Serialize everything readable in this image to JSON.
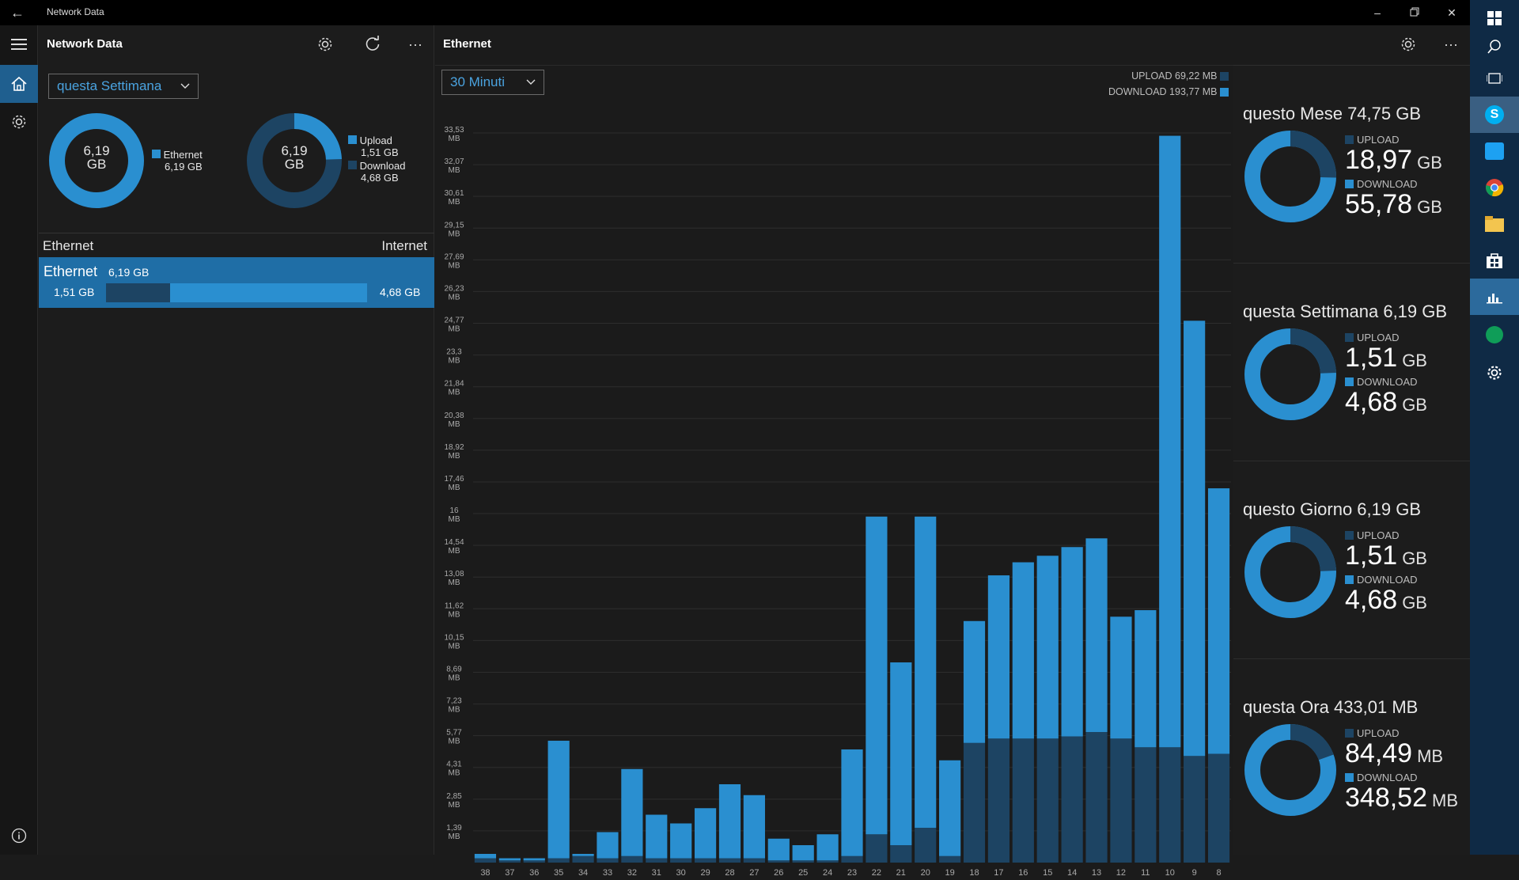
{
  "window": {
    "title": "Network Data"
  },
  "left_pane": {
    "title": "Network Data",
    "period_select": "questa Settimana",
    "donut1": {
      "center_line1": "6,19",
      "center_line2": "GB",
      "legend_label": "Ethernet",
      "legend_value": "6,19 GB"
    },
    "donut2": {
      "center_line1": "6,19",
      "center_line2": "GB",
      "upload_label": "Upload",
      "upload_value": "1,51 GB",
      "download_label": "Download",
      "download_value": "4,68 GB",
      "upload_fraction": 0.244
    },
    "list_header_left": "Ethernet",
    "list_header_right": "Internet",
    "adapter": {
      "name": "Ethernet",
      "total": "6,19 GB",
      "upload": "1,51 GB",
      "download": "4,68 GB",
      "upload_fraction": 0.244
    }
  },
  "right_pane": {
    "title": "Ethernet",
    "interval_select": "30 Minuti",
    "legend_upload": "UPLOAD 69,22 MB",
    "legend_download": "DOWNLOAD 193,77 MB"
  },
  "colors": {
    "download": "#2a8fd0",
    "upload": "#1d4463",
    "accent": "#2a8fd0"
  },
  "chart_data": {
    "type": "bar",
    "stacked": true,
    "y_ticks": [
      "33,53 MB",
      "32,07 MB",
      "30,61 MB",
      "29,15 MB",
      "27,69 MB",
      "26,23 MB",
      "24,77 MB",
      "23,3 MB",
      "21,84 MB",
      "20,38 MB",
      "18,92 MB",
      "17,46 MB",
      "16 MB",
      "14,54 MB",
      "13,08 MB",
      "11,62 MB",
      "10,15 MB",
      "8,69 MB",
      "7,23 MB",
      "5,77 MB",
      "4,31 MB",
      "2,85 MB",
      "1,39 MB"
    ],
    "ylim": [
      0,
      33.53
    ],
    "categories": [
      "38",
      "37",
      "36",
      "35",
      "34",
      "33",
      "32",
      "31",
      "30",
      "29",
      "28",
      "27",
      "26",
      "25",
      "24",
      "23",
      "22",
      "21",
      "20",
      "19",
      "18",
      "17",
      "16",
      "15",
      "14",
      "13",
      "12",
      "11",
      "10",
      "9",
      "8"
    ],
    "series": [
      {
        "name": "UPLOAD",
        "values": [
          0.2,
          0.1,
          0.1,
          0.2,
          0.3,
          0.2,
          0.3,
          0.2,
          0.2,
          0.2,
          0.2,
          0.2,
          0.1,
          0.1,
          0.1,
          0.3,
          1.3,
          0.8,
          1.6,
          0.3,
          5.5,
          5.7,
          5.7,
          5.7,
          5.8,
          6.0,
          5.7,
          5.3,
          5.3,
          4.9,
          5.0
        ]
      },
      {
        "name": "DOWNLOAD",
        "values": [
          0.2,
          0.1,
          0.1,
          5.4,
          0.1,
          1.2,
          4.0,
          2.0,
          1.6,
          2.3,
          3.4,
          2.9,
          1.0,
          0.7,
          1.2,
          4.9,
          14.6,
          8.4,
          14.3,
          4.4,
          5.6,
          7.5,
          8.1,
          8.4,
          8.7,
          8.9,
          5.6,
          6.3,
          28.1,
          20.0,
          12.2
        ]
      }
    ]
  },
  "summary_cards": [
    {
      "title": "questo Mese 74,75 GB",
      "upload_label": "UPLOAD",
      "upload_num": "18,97",
      "upload_unit": "GB",
      "download_label": "DOWNLOAD",
      "download_num": "55,78",
      "download_unit": "GB",
      "upload_fraction": 0.254
    },
    {
      "title": "questa Settimana 6,19 GB",
      "upload_label": "UPLOAD",
      "upload_num": "1,51",
      "upload_unit": "GB",
      "download_label": "DOWNLOAD",
      "download_num": "4,68",
      "download_unit": "GB",
      "upload_fraction": 0.244
    },
    {
      "title": "questo Giorno 6,19 GB",
      "upload_label": "UPLOAD",
      "upload_num": "1,51",
      "upload_unit": "GB",
      "download_label": "DOWNLOAD",
      "download_num": "4,68",
      "download_unit": "GB",
      "upload_fraction": 0.244
    },
    {
      "title": "questa Ora 433,01 MB",
      "upload_label": "UPLOAD",
      "upload_num": "84,49",
      "upload_unit": "MB",
      "download_label": "DOWNLOAD",
      "download_num": "348,52",
      "download_unit": "MB",
      "upload_fraction": 0.195
    }
  ],
  "taskbar": {
    "icons": [
      "windows-start-icon",
      "search-icon",
      "task-view-icon",
      "skype-icon",
      "twitter-icon",
      "chrome-icon",
      "file-explorer-icon",
      "store-icon",
      "network-data-icon",
      "hangouts-icon",
      "settings-icon"
    ]
  }
}
